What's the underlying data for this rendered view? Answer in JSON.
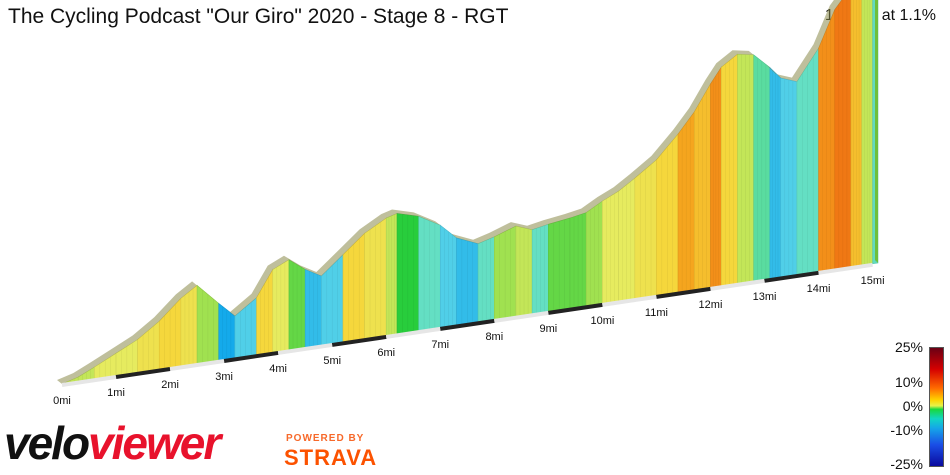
{
  "header": {
    "title": "The Cycling Podcast \"Our Giro\" 2020 - Stage 8 - RGT",
    "summary": "15.1 mi at 1.1%"
  },
  "logo": {
    "part1": "velo",
    "part2": "viewer",
    "powered_by": "POWERED BY",
    "provider": "STRAVA"
  },
  "scale": {
    "labels": [
      "25%",
      "10%",
      "0%",
      "-10%",
      "-25%"
    ]
  },
  "chart_data": {
    "type": "area",
    "xlabel": "",
    "ylabel": "",
    "x_ticks": [
      "0mi",
      "1mi",
      "2mi",
      "3mi",
      "4mi",
      "5mi",
      "6mi",
      "7mi",
      "8mi",
      "9mi",
      "10mi",
      "11mi",
      "12mi",
      "13mi",
      "14mi",
      "15mi"
    ],
    "distance_mi": [
      0,
      0.3,
      0.6,
      1.0,
      1.4,
      1.8,
      2.2,
      2.5,
      2.9,
      3.2,
      3.6,
      3.9,
      4.2,
      4.5,
      4.8,
      5.2,
      5.6,
      6.0,
      6.2,
      6.6,
      7.0,
      7.3,
      7.7,
      8.0,
      8.4,
      8.7,
      9.0,
      9.4,
      9.7,
      10.0,
      10.3,
      10.6,
      11.0,
      11.4,
      11.7,
      12.0,
      12.2,
      12.5,
      12.8,
      13.1,
      13.3,
      13.6,
      14.0,
      14.3,
      14.6,
      14.8,
      15.0,
      15.1
    ],
    "elevation_rel": [
      0,
      3,
      8,
      15,
      22,
      32,
      45,
      52,
      38,
      28,
      38,
      55,
      60,
      52,
      46,
      58,
      70,
      78,
      80,
      76,
      68,
      58,
      52,
      55,
      60,
      56,
      58,
      60,
      62,
      68,
      73,
      80,
      90,
      105,
      118,
      135,
      145,
      152,
      150,
      140,
      132,
      128,
      148,
      172,
      185,
      192,
      188,
      182
    ],
    "grade_pct": [
      3,
      3,
      4,
      4,
      5,
      6,
      5,
      2,
      -6,
      -4,
      6,
      4,
      1,
      -5,
      -4,
      6,
      5,
      3,
      0,
      -2,
      -4,
      -5,
      -2,
      2,
      3,
      -2,
      1,
      1,
      2,
      4,
      4,
      5,
      6,
      8,
      7,
      9,
      6,
      3,
      -1,
      -5,
      -4,
      -2,
      9,
      10,
      7,
      3,
      -2,
      -4
    ]
  }
}
